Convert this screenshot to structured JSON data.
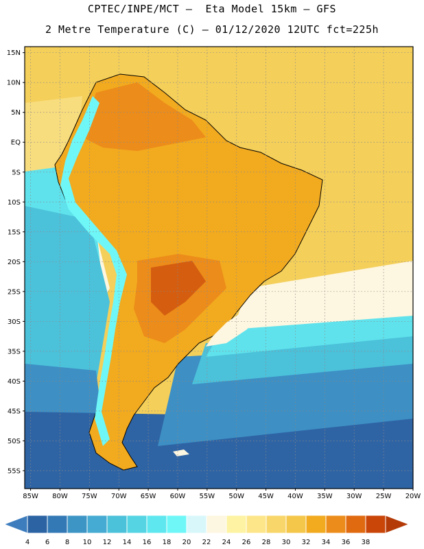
{
  "header": {
    "line1": "CPTEC/INPE/MCT –  Eta Model 15km – GFS",
    "line2": "2 Metre Temperature (C) – 01/12/2020 12UTC fct=225h"
  },
  "map": {
    "lat_labels": [
      "15N",
      "10N",
      "5N",
      "EQ",
      "5S",
      "10S",
      "15S",
      "20S",
      "25S",
      "30S",
      "35S",
      "40S",
      "45S",
      "50S",
      "55S"
    ],
    "lat_values": [
      15,
      10,
      5,
      0,
      -5,
      -10,
      -15,
      -20,
      -25,
      -30,
      -35,
      -40,
      -45,
      -50,
      -55
    ],
    "lon_labels": [
      "85W",
      "80W",
      "75W",
      "70W",
      "65W",
      "60W",
      "55W",
      "50W",
      "45W",
      "40W",
      "35W",
      "30W",
      "25W",
      "20W"
    ],
    "lon_values": [
      -85,
      -80,
      -75,
      -70,
      -65,
      -60,
      -55,
      -50,
      -45,
      -40,
      -35,
      -30,
      -25,
      -20
    ],
    "extent": {
      "lon_min": -86,
      "lon_max": -20,
      "lat_min": -58,
      "lat_max": 16
    }
  },
  "colorbar": {
    "labels": [
      "4",
      "6",
      "8",
      "10",
      "12",
      "14",
      "16",
      "18",
      "20",
      "22",
      "24",
      "26",
      "28",
      "30",
      "32",
      "34",
      "36",
      "38"
    ],
    "colors": [
      "#2b63a3",
      "#3379b6",
      "#3d95c6",
      "#45abd2",
      "#4cc1da",
      "#55d5e3",
      "#5fe7ef",
      "#6ff7f8",
      "#d8f7fb",
      "#fdf6e0",
      "#fdf3a2",
      "#fde68a",
      "#f8d66a",
      "#f4c64a",
      "#f2aa1f",
      "#ec8c1a",
      "#e06a10",
      "#c94508"
    ],
    "end_low_color": "#3e7dbd",
    "end_high_color": "#b43b08"
  },
  "field_colors": {
    "ocean_deep": "#2f64a4",
    "ocean_mid": "#3d8fc4",
    "ocean_cool": "#4cc1da",
    "ocean_cyan": "#5fe2ec",
    "ocean_pale": "#fdf6e0",
    "ocean_warm": "#f8dd7e",
    "ocean_trop": "#f4cf5a",
    "land_warm": "#f2aa1f",
    "land_hot": "#ec8c1a",
    "land_vhot": "#d45d10",
    "andes_cold": "#6ff7f8"
  }
}
